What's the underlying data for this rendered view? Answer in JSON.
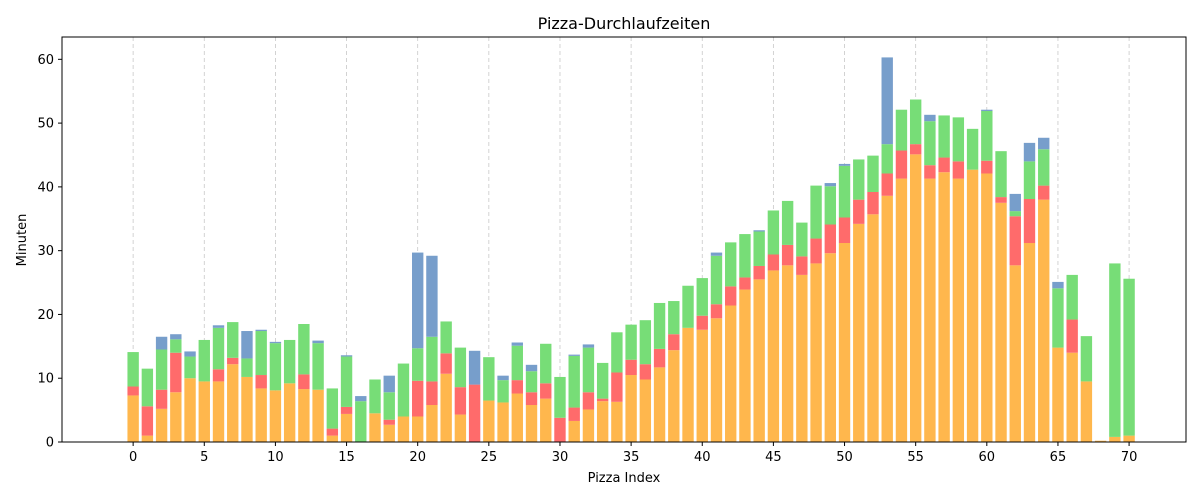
{
  "chart_data": {
    "type": "bar",
    "stacked": true,
    "title": "Pizza-Durchlaufzeiten",
    "xlabel": "Pizza Index",
    "ylabel": "Minuten",
    "xlim": [
      -5,
      74
    ],
    "ylim": [
      0,
      63.5
    ],
    "xticks": [
      0,
      5,
      10,
      15,
      20,
      25,
      30,
      35,
      40,
      45,
      50,
      55,
      60,
      65,
      70
    ],
    "yticks": [
      0,
      10,
      20,
      30,
      40,
      50,
      60
    ],
    "grid": "vertical-dashed",
    "categories": [
      0,
      1,
      2,
      3,
      4,
      5,
      6,
      7,
      8,
      9,
      10,
      11,
      12,
      13,
      14,
      15,
      16,
      17,
      18,
      19,
      20,
      21,
      22,
      23,
      24,
      25,
      26,
      27,
      28,
      29,
      30,
      31,
      32,
      33,
      34,
      35,
      36,
      37,
      38,
      39,
      40,
      41,
      42,
      43,
      44,
      45,
      46,
      47,
      48,
      49,
      50,
      51,
      52,
      53,
      54,
      55,
      56,
      57,
      58,
      59,
      60,
      61,
      62,
      63,
      64,
      65,
      66,
      67,
      68,
      69,
      70
    ],
    "series": [
      {
        "name": "orange",
        "color": "#ffb74d",
        "values": [
          7.3,
          1.0,
          5.2,
          7.8,
          10.0,
          9.5,
          9.5,
          12.2,
          10.2,
          8.4,
          8.1,
          9.2,
          8.3,
          8.2,
          1.0,
          4.4,
          0.0,
          4.5,
          2.7,
          4.0,
          4.0,
          5.8,
          10.7,
          4.3,
          0.0,
          6.5,
          6.2,
          7.6,
          5.8,
          6.8,
          0.0,
          3.3,
          5.1,
          6.4,
          6.3,
          10.5,
          9.8,
          11.7,
          14.4,
          17.9,
          17.6,
          19.4,
          21.4,
          23.9,
          25.5,
          26.9,
          27.7,
          26.2,
          28.0,
          29.6,
          31.2,
          34.2,
          35.7,
          38.6,
          41.3,
          45.1,
          41.3,
          42.3,
          41.3,
          42.7,
          42.1,
          37.5,
          27.7,
          31.2,
          38.0,
          14.8,
          14.0,
          9.5,
          0.2,
          0.8,
          1.0
        ]
      },
      {
        "name": "red",
        "color": "#ff6b6b",
        "values": [
          1.4,
          4.6,
          3.0,
          6.2,
          0.0,
          0.0,
          1.9,
          1.0,
          0.0,
          2.1,
          0.0,
          0.0,
          2.3,
          0.0,
          1.1,
          1.1,
          0.0,
          0.0,
          0.8,
          0.0,
          5.6,
          3.7,
          3.2,
          4.3,
          9.0,
          0.0,
          0.0,
          2.1,
          2.0,
          2.4,
          3.8,
          2.1,
          2.7,
          0.4,
          4.6,
          2.4,
          2.4,
          2.9,
          2.5,
          0.0,
          2.2,
          2.2,
          3.0,
          1.9,
          2.1,
          2.5,
          3.2,
          2.9,
          3.9,
          4.5,
          4.0,
          3.8,
          3.5,
          3.5,
          4.4,
          1.6,
          2.1,
          2.3,
          2.7,
          0.0,
          2.0,
          0.9,
          7.7,
          6.9,
          2.2,
          0.0,
          5.2,
          0.0,
          0.0,
          0.0,
          0.0
        ]
      },
      {
        "name": "green",
        "color": "#77dd77",
        "values": [
          5.4,
          5.9,
          6.3,
          2.1,
          3.4,
          6.5,
          6.5,
          5.6,
          2.9,
          6.9,
          7.4,
          6.8,
          7.9,
          7.3,
          6.3,
          7.9,
          6.4,
          5.3,
          4.3,
          8.3,
          5.1,
          7.0,
          5.0,
          6.2,
          0.0,
          6.8,
          3.5,
          5.4,
          3.3,
          6.2,
          6.4,
          8.1,
          7.0,
          5.6,
          6.3,
          5.5,
          6.9,
          7.2,
          5.2,
          6.6,
          5.9,
          7.6,
          6.9,
          6.8,
          5.4,
          6.9,
          6.9,
          5.3,
          8.3,
          6.0,
          8.1,
          6.3,
          5.7,
          4.6,
          6.4,
          7.0,
          6.9,
          6.6,
          6.9,
          6.4,
          7.8,
          7.2,
          0.8,
          5.9,
          5.7,
          9.3,
          7.0,
          7.1,
          0.0,
          27.2,
          24.6
        ]
      },
      {
        "name": "blue",
        "color": "#779ecb",
        "values": [
          0.0,
          0.0,
          2.0,
          0.8,
          0.8,
          0.0,
          0.4,
          0.0,
          4.3,
          0.2,
          0.2,
          0.0,
          0.0,
          0.4,
          0.0,
          0.2,
          0.8,
          0.0,
          2.6,
          0.0,
          15.0,
          12.7,
          0.0,
          0.0,
          5.3,
          0.0,
          0.7,
          0.5,
          1.0,
          0.0,
          0.0,
          0.2,
          0.5,
          0.0,
          0.0,
          0.0,
          0.0,
          0.0,
          0.0,
          0.0,
          0.0,
          0.5,
          0.0,
          0.0,
          0.2,
          0.0,
          0.0,
          0.0,
          0.0,
          0.5,
          0.3,
          0.0,
          0.0,
          13.6,
          0.0,
          0.0,
          1.0,
          0.0,
          0.0,
          0.0,
          0.2,
          0.0,
          2.7,
          2.9,
          1.8,
          1.0,
          0.0,
          0.0,
          0.0,
          0.0,
          0.0
        ]
      }
    ]
  }
}
